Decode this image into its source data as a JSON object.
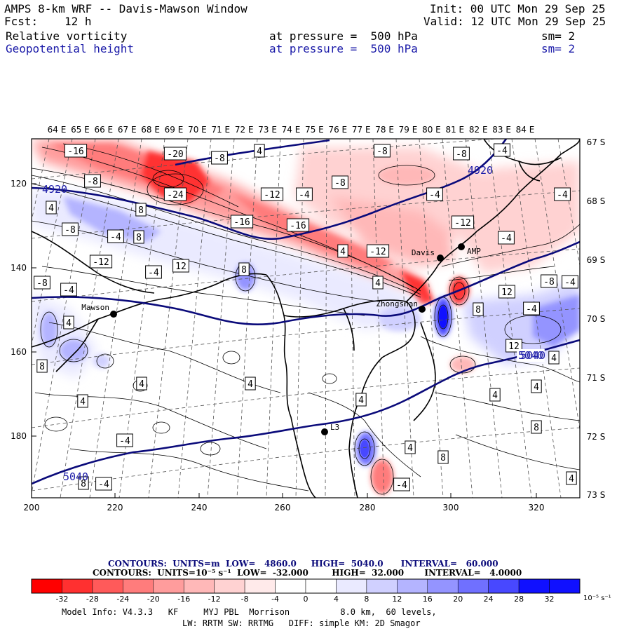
{
  "header": {
    "title": "AMPS 8-km WRF -- Davis-Mawson Window",
    "fcst_label": "Fcst:",
    "fcst_value": "12 h",
    "init": "Init: 00 UTC Mon 29 Sep 25",
    "valid": "Valid: 12 UTC Mon 29 Sep 25",
    "field1": {
      "name": "Relative vorticity",
      "level": "at pressure =  500 hPa",
      "smooth": "sm= 2"
    },
    "field2": {
      "name": "Geopotential height",
      "level": "at pressure =  500 hPa",
      "smooth": "sm= 2"
    }
  },
  "axes": {
    "top_lon": [
      "64 E",
      "65 E",
      "66 E",
      "67 E",
      "68 E",
      "69 E",
      "70 E",
      "71 E",
      "72 E",
      "73 E",
      "74 E",
      "75 E",
      "76 E",
      "77 E",
      "78 E",
      "79 E",
      "80 E",
      "81 E",
      "82 E",
      "83 E",
      "84 E"
    ],
    "right_lat": [
      "67 S",
      "68 S",
      "69 S",
      "70 S",
      "71 S",
      "72 S",
      "73 S"
    ],
    "left_y": [
      "120",
      "140",
      "160",
      "180"
    ],
    "bottom_x": [
      "200",
      "220",
      "240",
      "260",
      "280",
      "300",
      "320"
    ]
  },
  "stations": [
    {
      "name": "Mawson"
    },
    {
      "name": "Davis"
    },
    {
      "name": "AMP"
    },
    {
      "name": "Zhongshan"
    },
    {
      "name": "L3"
    }
  ],
  "height_contours": {
    "units": "m",
    "low": 4860.0,
    "high": 5040.0,
    "interval": 60.0,
    "labels": [
      "4920",
      "4920",
      "5040",
      "5040"
    ]
  },
  "vorticity_contours": {
    "low": -32.0,
    "high": 32.0,
    "interval": 4.0
  },
  "contour_labels": [
    "-16",
    "-20",
    "-8",
    "4",
    "-8",
    "-8",
    "-4",
    "-8",
    "-24",
    "-12",
    "-4",
    "-8",
    "-4",
    "-4",
    "4",
    "8",
    "-16",
    "-16",
    "-12",
    "-8",
    "-4",
    "-4",
    "8",
    "12",
    "4",
    "-12",
    "-12",
    "-8",
    "-4",
    "8",
    "-4",
    "4",
    "12",
    "-8",
    "-4",
    "8",
    "-4",
    "4",
    "8",
    "4",
    "4",
    "4",
    "4",
    "4",
    "-4",
    "4",
    "12",
    "8",
    "4",
    "5040",
    "-4",
    "8",
    "8",
    "4",
    "4",
    "-4"
  ],
  "legend": {
    "line1": "CONTOURS:  UNITS=m  LOW=   4860.0     HIGH=  5040.0      INTERVAL=   60.000",
    "line2": "CONTOURS:  UNITS=10⁻⁵ s⁻¹  LOW=  -32.000        HIGH=  32.000       INTERVAL=   4.0000",
    "ticks": [
      "-32",
      "-28",
      "-24",
      "-20",
      "-16",
      "-12",
      "-8",
      "-4",
      "0",
      "4",
      "8",
      "12",
      "16",
      "20",
      "24",
      "28",
      "32"
    ],
    "unit": "10⁻⁵ s⁻¹",
    "colors": [
      "#ff0000",
      "#ff3030",
      "#ff5a5a",
      "#ff7c7c",
      "#ff9c9c",
      "#ffb8b8",
      "#ffd2d2",
      "#ffeaea",
      "#ffffff",
      "#ffffff",
      "#eaeaff",
      "#d0d0ff",
      "#b4b4ff",
      "#9494ff",
      "#7070ff",
      "#4848ff",
      "#1010ff"
    ]
  },
  "footer": {
    "line1": "Model Info: V4.3.3   KF     MYJ PBL  Morrison          8.0 km,  60 levels,",
    "line2": "LW: RRTM SW: RRTMG   DIFF: simple KM: 2D Smagor"
  }
}
